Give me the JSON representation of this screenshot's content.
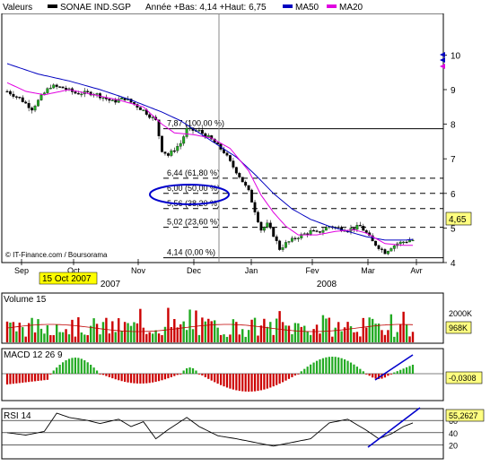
{
  "header": {
    "label": "Valeurs",
    "symbol": "SONAE IND.SGP",
    "range_text": "Année +Bas: 4,14 +Haut: 6,75",
    "ma50_label": "MA50",
    "ma20_label": "MA20",
    "ma50_color": "#0000c0",
    "ma20_color": "#e000e0"
  },
  "watermark": "© IT-Finance.com / Boursorama",
  "date_flag": "15 Oct 2007",
  "months": [
    "Sep",
    "Oct",
    "Nov",
    "Dec",
    "Jan",
    "Fev",
    "Mar",
    "Avr"
  ],
  "years": [
    "2007",
    "2008"
  ],
  "chart_data": [
    {
      "type": "candlestick",
      "title": "SONAE IND.SGP",
      "y_ticks": [
        "10",
        "9",
        "8",
        "7",
        "6",
        "5",
        "4"
      ],
      "ylim": [
        4,
        10.4
      ],
      "last_price": "4,65",
      "x_months": [
        "Sep",
        "Oct",
        "Nov",
        "Dec",
        "Jan",
        "Fev",
        "Mar",
        "Avr"
      ],
      "fibonacci_levels": [
        {
          "label": "7,87 (100,00 %)",
          "value": 7.87,
          "style": "solid"
        },
        {
          "label": "6,44 (61,80 %)",
          "value": 6.44,
          "style": "dashed"
        },
        {
          "label": "6,00 (50,00 %)",
          "value": 6.0,
          "style": "dashed"
        },
        {
          "label": "5,56 (38,20 %)",
          "value": 5.56,
          "style": "dashed"
        },
        {
          "label": "5,02 (23,60 %)",
          "value": 5.02,
          "style": "dashed",
          "highlight": true
        },
        {
          "label": "4,14 (0,00 %)",
          "value": 4.14,
          "style": "solid"
        }
      ],
      "price_path": [
        [
          0,
          8.95
        ],
        [
          4,
          8.75
        ],
        [
          8,
          8.45
        ],
        [
          12,
          8.9
        ],
        [
          14,
          9.1
        ],
        [
          18,
          9.05
        ],
        [
          22,
          8.9
        ],
        [
          28,
          8.9
        ],
        [
          34,
          8.65
        ],
        [
          38,
          8.75
        ],
        [
          44,
          8.4
        ],
        [
          48,
          8.1
        ],
        [
          50,
          7.25
        ],
        [
          52,
          7.1
        ],
        [
          56,
          7.45
        ],
        [
          58,
          7.85
        ],
        [
          62,
          7.8
        ],
        [
          66,
          7.55
        ],
        [
          70,
          7.2
        ],
        [
          72,
          6.9
        ],
        [
          75,
          6.5
        ],
        [
          78,
          6.05
        ],
        [
          80,
          5.5
        ],
        [
          82,
          4.95
        ],
        [
          84,
          5.1
        ],
        [
          86,
          4.8
        ],
        [
          88,
          4.4
        ],
        [
          90,
          4.55
        ],
        [
          92,
          4.65
        ],
        [
          94,
          4.75
        ],
        [
          98,
          4.9
        ],
        [
          100,
          4.85
        ],
        [
          104,
          5.05
        ],
        [
          110,
          4.95
        ],
        [
          114,
          5.05
        ],
        [
          116,
          4.85
        ],
        [
          118,
          4.6
        ],
        [
          120,
          4.45
        ],
        [
          122,
          4.3
        ],
        [
          124,
          4.45
        ],
        [
          126,
          4.55
        ],
        [
          128,
          4.6
        ],
        [
          130,
          4.65
        ],
        [
          131,
          4.65
        ]
      ],
      "ma50_path": [
        [
          0,
          9.75
        ],
        [
          10,
          9.45
        ],
        [
          20,
          9.25
        ],
        [
          30,
          9.0
        ],
        [
          40,
          8.7
        ],
        [
          50,
          8.35
        ],
        [
          56,
          8.1
        ],
        [
          62,
          7.75
        ],
        [
          68,
          7.4
        ],
        [
          74,
          7.05
        ],
        [
          80,
          6.55
        ],
        [
          86,
          6.0
        ],
        [
          92,
          5.55
        ],
        [
          98,
          5.25
        ],
        [
          104,
          5.05
        ],
        [
          110,
          4.9
        ],
        [
          116,
          4.75
        ],
        [
          122,
          4.65
        ],
        [
          128,
          4.65
        ],
        [
          131,
          4.67
        ]
      ],
      "ma20_path": [
        [
          0,
          9.2
        ],
        [
          6,
          8.95
        ],
        [
          12,
          8.85
        ],
        [
          20,
          9.0
        ],
        [
          28,
          8.85
        ],
        [
          36,
          8.7
        ],
        [
          44,
          8.5
        ],
        [
          50,
          8.0
        ],
        [
          54,
          7.75
        ],
        [
          60,
          7.7
        ],
        [
          66,
          7.6
        ],
        [
          72,
          7.3
        ],
        [
          78,
          6.65
        ],
        [
          82,
          5.95
        ],
        [
          86,
          5.45
        ],
        [
          90,
          5.05
        ],
        [
          94,
          4.8
        ],
        [
          100,
          4.8
        ],
        [
          106,
          4.9
        ],
        [
          112,
          4.95
        ],
        [
          116,
          4.85
        ],
        [
          122,
          4.55
        ],
        [
          128,
          4.5
        ],
        [
          131,
          4.5
        ]
      ],
      "annotations": [
        "15 Oct 2007"
      ]
    },
    {
      "type": "bar",
      "title": "Volume 15",
      "y_ticks": [
        "2000K"
      ],
      "last_value": "968K"
    },
    {
      "type": "bar",
      "title": "MACD 12 26 9",
      "last_value": "-0,0308"
    },
    {
      "type": "line",
      "title": "RSI 14",
      "y_ticks": [
        "60",
        "40",
        "20"
      ],
      "ylim": [
        0,
        100
      ],
      "last_value": "55,2627",
      "rsi_path": [
        [
          0,
          40
        ],
        [
          6,
          36
        ],
        [
          12,
          42
        ],
        [
          16,
          72
        ],
        [
          20,
          65
        ],
        [
          26,
          60
        ],
        [
          30,
          55
        ],
        [
          36,
          62
        ],
        [
          40,
          50
        ],
        [
          44,
          58
        ],
        [
          48,
          30
        ],
        [
          52,
          45
        ],
        [
          58,
          65
        ],
        [
          62,
          50
        ],
        [
          68,
          35
        ],
        [
          74,
          30
        ],
        [
          80,
          24
        ],
        [
          86,
          18
        ],
        [
          92,
          24
        ],
        [
          98,
          30
        ],
        [
          104,
          56
        ],
        [
          110,
          62
        ],
        [
          116,
          44
        ],
        [
          120,
          30
        ],
        [
          124,
          38
        ],
        [
          128,
          50
        ],
        [
          131,
          56
        ]
      ]
    }
  ]
}
